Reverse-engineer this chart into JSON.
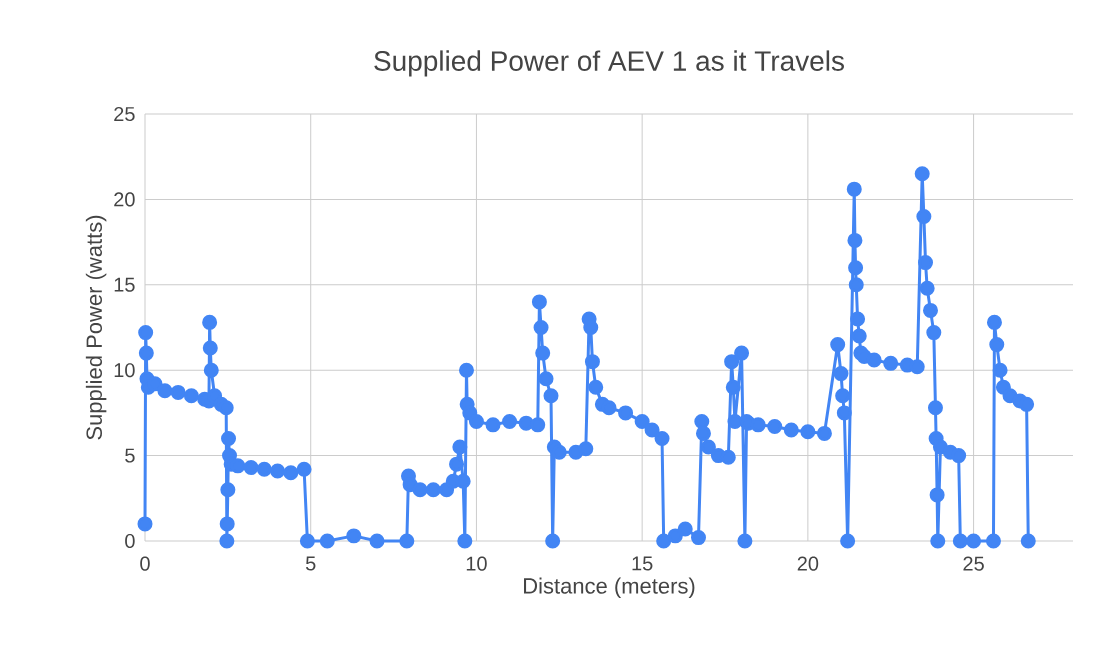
{
  "chart_data": {
    "type": "line",
    "title": "Supplied Power of AEV 1 as it Travels",
    "xlabel": "Distance (meters)",
    "ylabel": "Supplied  Power (watts)",
    "xlim": [
      0,
      28
    ],
    "ylim": [
      0,
      25
    ],
    "xticks": [
      0,
      5,
      10,
      15,
      20,
      25
    ],
    "yticks": [
      0,
      5,
      10,
      15,
      20,
      25
    ],
    "grid": true,
    "marker": "circle",
    "line_style": "solid",
    "series": [
      {
        "color": "#4285f4",
        "x": [
          0,
          0.02,
          0.04,
          0.06,
          0.1,
          0.3,
          0.6,
          1.0,
          1.4,
          1.8,
          1.93,
          1.95,
          1.97,
          2.0,
          2.1,
          2.3,
          2.45,
          2.47,
          2.48,
          2.5,
          2.52,
          2.55,
          2.6,
          2.8,
          3.2,
          3.6,
          4.0,
          4.4,
          4.8,
          4.9,
          5.5,
          6.3,
          7.0,
          7.9,
          7.95,
          8.0,
          8.3,
          8.7,
          9.1,
          9.3,
          9.4,
          9.5,
          9.6,
          9.65,
          9.7,
          9.72,
          9.8,
          10.0,
          10.5,
          11.0,
          11.5,
          11.85,
          11.9,
          11.95,
          12.0,
          12.1,
          12.25,
          12.3,
          12.35,
          12.5,
          13.0,
          13.3,
          13.4,
          13.45,
          13.5,
          13.6,
          13.8,
          14.0,
          14.5,
          15.0,
          15.3,
          15.6,
          15.65,
          16.0,
          16.3,
          16.7,
          16.8,
          16.85,
          17.0,
          17.3,
          17.6,
          17.7,
          17.75,
          17.8,
          18.0,
          18.1,
          18.15,
          18.2,
          18.5,
          19.0,
          19.5,
          20.0,
          20.5,
          20.9,
          21.0,
          21.05,
          21.1,
          21.2,
          21.4,
          21.42,
          21.44,
          21.46,
          21.5,
          21.55,
          21.6,
          21.7,
          22.0,
          22.5,
          23.0,
          23.3,
          23.45,
          23.5,
          23.55,
          23.6,
          23.7,
          23.8,
          23.85,
          23.87,
          23.9,
          23.92,
          24.0,
          24.3,
          24.55,
          24.6,
          25.0,
          25.6,
          25.63,
          25.7,
          25.8,
          25.9,
          26.1,
          26.4,
          26.6,
          26.65
        ],
        "values": [
          1,
          12.2,
          11,
          9.5,
          9,
          9.2,
          8.8,
          8.7,
          8.5,
          8.3,
          8.2,
          12.8,
          11.3,
          10,
          8.5,
          8,
          7.8,
          0,
          1,
          3,
          6,
          5,
          4.5,
          4.4,
          4.3,
          4.2,
          4.1,
          4.0,
          4.2,
          0,
          0,
          0.3,
          0,
          0,
          3.8,
          3.3,
          3,
          3,
          3,
          3.5,
          4.5,
          5.5,
          3.5,
          0,
          10,
          8,
          7.5,
          7,
          6.8,
          7,
          6.9,
          6.8,
          14,
          12.5,
          11,
          9.5,
          8.5,
          0,
          5.5,
          5.2,
          5.2,
          5.4,
          13,
          12.5,
          10.5,
          9,
          8,
          7.8,
          7.5,
          7,
          6.5,
          6,
          0,
          0.3,
          0.7,
          0.2,
          7,
          6.3,
          5.5,
          5,
          4.9,
          10.5,
          9,
          7,
          11,
          0,
          7,
          6.9,
          6.8,
          6.7,
          6.5,
          6.4,
          6.3,
          11.5,
          9.8,
          8.5,
          7.5,
          0,
          20.6,
          17.6,
          16,
          15,
          13,
          12,
          11,
          10.8,
          10.6,
          10.4,
          10.3,
          10.2,
          21.5,
          19,
          16.3,
          14.8,
          13.5,
          12.2,
          7.8,
          6,
          2.7,
          0,
          5.5,
          5.2,
          5,
          0,
          0,
          0,
          12.8,
          11.5,
          10,
          9,
          8.5,
          8.2,
          8,
          0
        ]
      }
    ]
  }
}
